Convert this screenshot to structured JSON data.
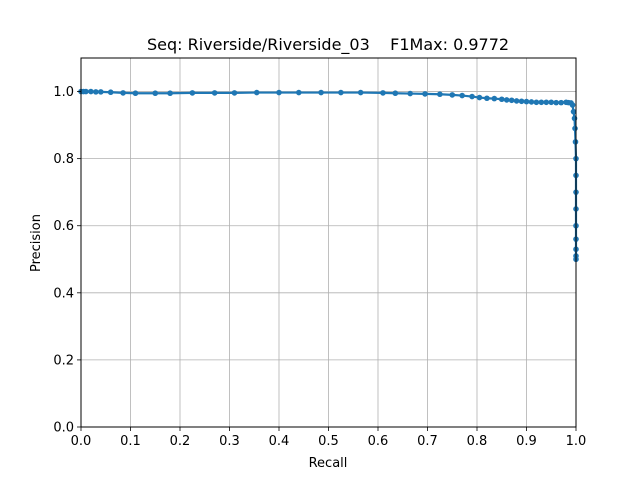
{
  "chart_data": {
    "type": "line",
    "title": "Seq: Riverside/Riverside_03    F1Max: 0.9772",
    "xlabel": "Recall",
    "ylabel": "Precision",
    "xlim": [
      0.0,
      1.0
    ],
    "ylim": [
      0.0,
      1.1
    ],
    "x_ticks": [
      0.0,
      0.1,
      0.2,
      0.3,
      0.4,
      0.5,
      0.6,
      0.7,
      0.8,
      0.9,
      1.0
    ],
    "y_ticks": [
      0.0,
      0.2,
      0.4,
      0.6,
      0.8,
      1.0
    ],
    "x_tick_labels": [
      "0.0",
      "0.1",
      "0.2",
      "0.3",
      "0.4",
      "0.5",
      "0.6",
      "0.7",
      "0.8",
      "0.9",
      "1.0"
    ],
    "y_tick_labels": [
      "0.0",
      "0.2",
      "0.4",
      "0.6",
      "0.8",
      "1.0"
    ],
    "grid": true,
    "color": "#1f77b4",
    "marker": "circle",
    "series": [
      {
        "x": [
          0.0,
          0.005,
          0.01,
          0.02,
          0.03,
          0.04,
          0.06,
          0.085,
          0.11,
          0.15,
          0.18,
          0.225,
          0.27,
          0.31,
          0.355,
          0.4,
          0.44,
          0.485,
          0.525,
          0.565,
          0.61,
          0.635,
          0.665,
          0.695,
          0.725,
          0.75,
          0.77,
          0.79,
          0.805,
          0.82,
          0.835,
          0.85,
          0.86,
          0.87,
          0.88,
          0.89,
          0.9,
          0.91,
          0.92,
          0.93,
          0.94,
          0.95,
          0.96,
          0.97,
          0.98,
          0.985,
          0.99,
          0.993,
          0.995,
          0.997,
          0.998,
          0.999,
          1.0,
          1.0,
          1.0,
          1.0,
          1.0,
          1.0,
          1.0,
          1.0,
          1.0
        ],
        "y": [
          1.0,
          1.0,
          1.0,
          1.0,
          0.999,
          0.999,
          0.998,
          0.996,
          0.995,
          0.995,
          0.995,
          0.996,
          0.996,
          0.996,
          0.997,
          0.997,
          0.997,
          0.997,
          0.997,
          0.997,
          0.996,
          0.995,
          0.994,
          0.993,
          0.992,
          0.99,
          0.988,
          0.985,
          0.982,
          0.98,
          0.979,
          0.977,
          0.975,
          0.974,
          0.972,
          0.971,
          0.97,
          0.969,
          0.968,
          0.968,
          0.968,
          0.968,
          0.967,
          0.967,
          0.968,
          0.967,
          0.966,
          0.96,
          0.94,
          0.92,
          0.89,
          0.85,
          0.8,
          0.75,
          0.7,
          0.65,
          0.6,
          0.56,
          0.53,
          0.51,
          0.5
        ]
      }
    ]
  }
}
